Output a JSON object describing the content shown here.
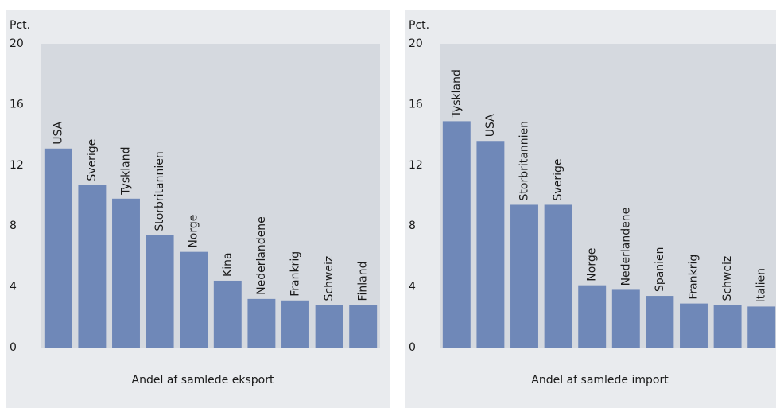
{
  "chart_data": [
    {
      "type": "bar",
      "ylabel": "Pct.",
      "xlabel": "Andel af samlede eksport",
      "categories": [
        "USA",
        "Sverige",
        "Tyskland",
        "Storbritannien",
        "Norge",
        "Kina",
        "Nederlandene",
        "Frankrig",
        "Schweiz",
        "Finland"
      ],
      "values": [
        13.1,
        10.7,
        9.8,
        7.4,
        6.3,
        4.4,
        3.2,
        3.1,
        2.8,
        2.8
      ],
      "color": "#6f88b8",
      "ylim": [
        0,
        20
      ],
      "yticks": [
        0,
        4,
        8,
        12,
        16,
        20
      ],
      "grid": false
    },
    {
      "type": "bar",
      "ylabel": "Pct.",
      "xlabel": "Andel af samlede import",
      "categories": [
        "Tyskland",
        "USA",
        "Storbritannien",
        "Sverige",
        "Norge",
        "Nederlandene",
        "Spanien",
        "Frankrig",
        "Schweiz",
        "Italien"
      ],
      "values": [
        14.9,
        13.6,
        9.4,
        9.4,
        4.1,
        3.8,
        3.4,
        2.9,
        2.8,
        2.7
      ],
      "color": "#6f88b8",
      "ylim": [
        0,
        20
      ],
      "yticks": [
        0,
        4,
        8,
        12,
        16,
        20
      ],
      "grid": false
    }
  ]
}
